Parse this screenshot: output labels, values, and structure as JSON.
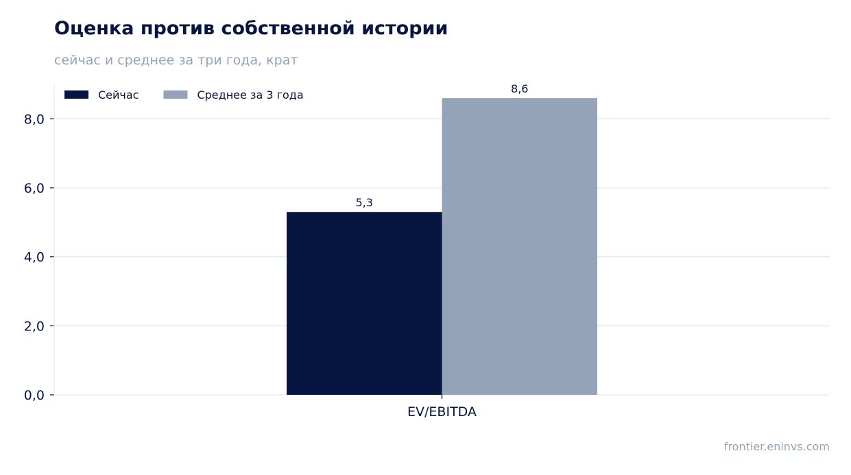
{
  "chart_data": {
    "type": "bar",
    "title": "Оценка против собственной истории",
    "subtitle": "сейчас и среднее за три года, крат",
    "categories": [
      "EV/EBITDA"
    ],
    "series": [
      {
        "name": "Сейчас",
        "values": [
          5.3
        ],
        "color": "#071640"
      },
      {
        "name": "Среднее за 3 года",
        "values": [
          8.6
        ],
        "color": "#94a3b8"
      }
    ],
    "value_labels": [
      "5,3",
      "8,6"
    ],
    "ylim": [
      0,
      9
    ],
    "yticks": [
      0,
      2,
      4,
      6,
      8
    ],
    "ytick_labels": [
      "0,0",
      "2,0",
      "4,0",
      "6,0",
      "8,0"
    ],
    "xlabel": "",
    "ylabel": "",
    "grid": true,
    "legend_position": "top-left"
  },
  "footer": {
    "source": "frontier.eninvs.com"
  }
}
